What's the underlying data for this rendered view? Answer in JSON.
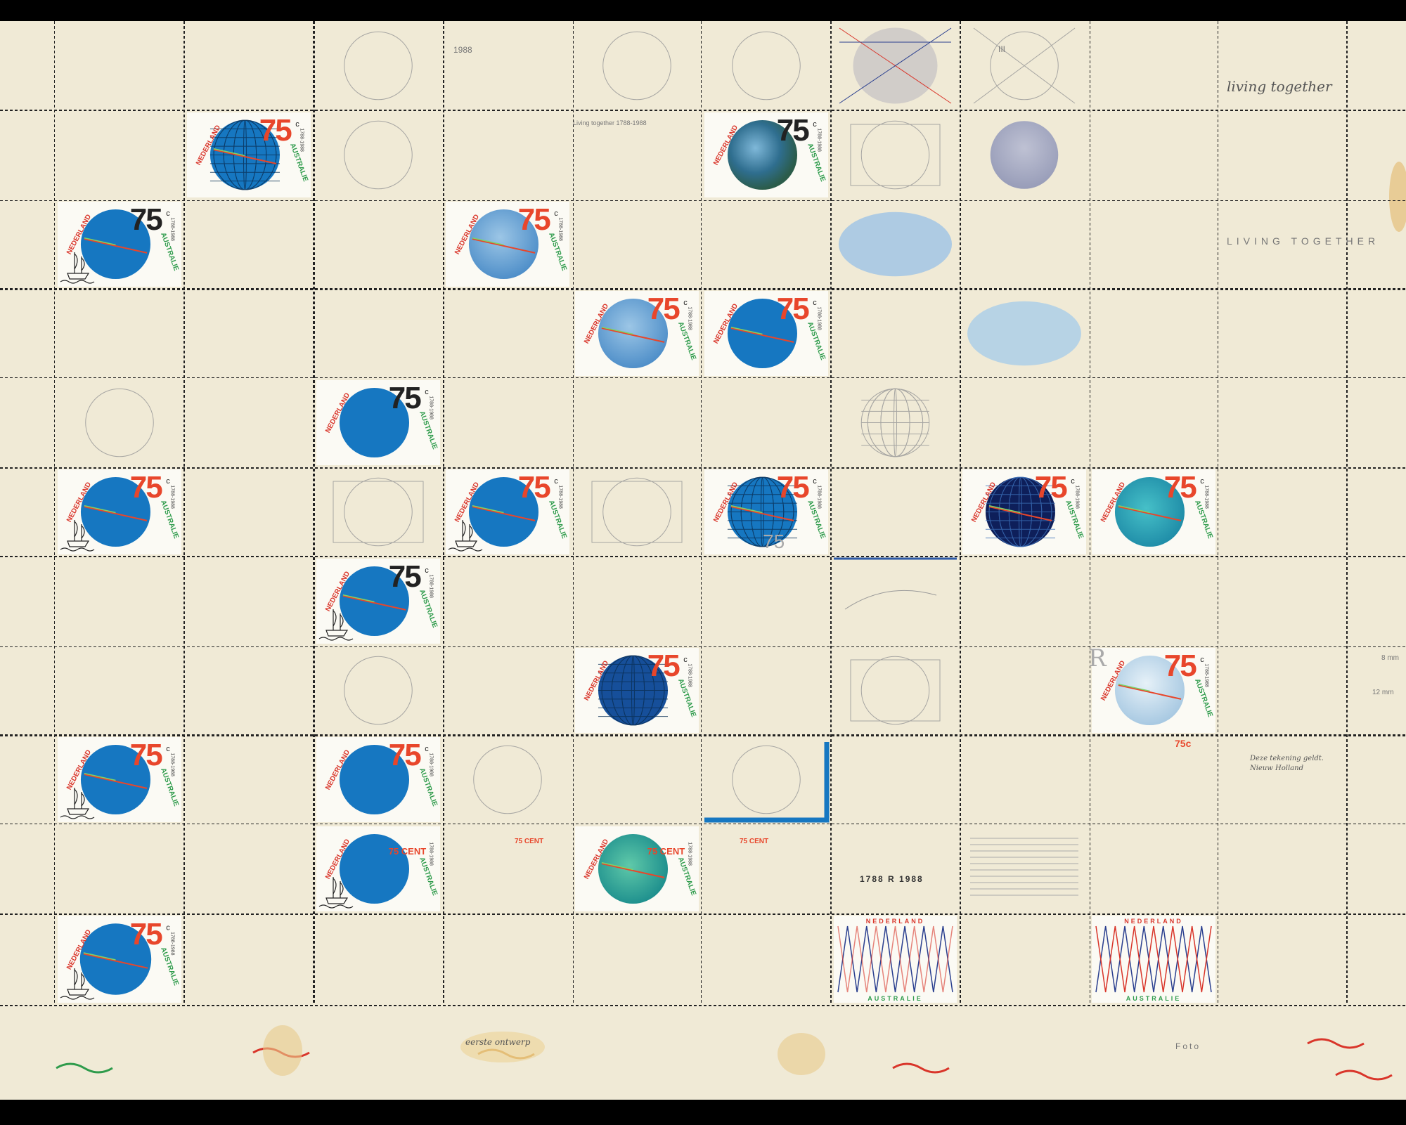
{
  "artwork": {
    "grid": {
      "columns": 11,
      "rows": 11
    },
    "stamp": {
      "value": "75",
      "value_alt": "75 CENT",
      "unit": "c",
      "country_1": "NEDERLAND",
      "country_2": "AUSTRALIE",
      "years": "1788-1988"
    },
    "texts": {
      "living_together": "living together",
      "living_together_caps": "LIVING TOGETHER",
      "living_together_years": "Living together 1788-1988",
      "year_1988": "1988",
      "design_note": "Deze tekening geldt.",
      "sheet_note": "Nieuw Holland",
      "margin_note": "eerste ontwerp",
      "arrow_value": "75",
      "dutch_word": "Foto",
      "dimension_1": "8 mm",
      "dimension_2": "12 mm",
      "years_sequence": "1788 R 1988",
      "tall_letter": "R",
      "small_value": "75c",
      "cent_value": "75 CENT",
      "three": "III"
    },
    "colors": {
      "paper": "#f0ead6",
      "globe_blue": "#1677c1",
      "globe_dark": "#0f3c73",
      "value_red": "#e8462b",
      "country_red": "#d9352a",
      "country_green": "#2e9b4b",
      "perforation": "#222222",
      "pencil": "#9a9a9a"
    }
  }
}
